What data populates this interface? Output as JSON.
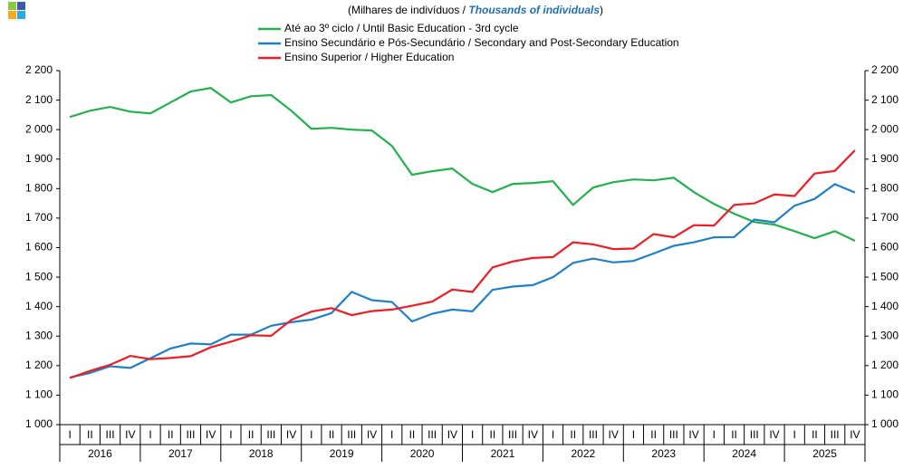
{
  "chart_data": {
    "type": "line",
    "subtitle": [
      "(Milhares de indivíduos / ",
      "Thousands of individuals",
      ")"
    ],
    "categories": [
      "I",
      "II",
      "III",
      "IV",
      "I",
      "II",
      "III",
      "IV",
      "I",
      "II",
      "III",
      "IV",
      "I",
      "II",
      "III",
      "IV",
      "I",
      "II",
      "III",
      "IV",
      "I",
      "II",
      "III",
      "IV",
      "I",
      "II",
      "III",
      "IV",
      "I",
      "II",
      "III",
      "IV",
      "I",
      "II",
      "III",
      "IV",
      "I",
      "II",
      "III",
      "IV"
    ],
    "years": [
      "2016",
      "2017",
      "2018",
      "2019",
      "2020",
      "2021",
      "2022",
      "2023",
      "2024",
      "2025"
    ],
    "series": [
      {
        "name": "Até ao 3º ciclo / Until Basic Education - 3rd cycle",
        "color": "#22b14c",
        "values": [
          2043,
          2064,
          2077,
          2061,
          2055,
          2092,
          2129,
          2141,
          2092,
          2113,
          2117,
          2064,
          2003,
          2006,
          2000,
          1997,
          1945,
          1847,
          1859,
          1868,
          1816,
          1788,
          1816,
          1819,
          1825,
          1745,
          1804,
          1822,
          1831,
          1828,
          1837,
          1788,
          1748,
          1715,
          1687,
          1678,
          1656,
          1632,
          1656,
          1623
        ]
      },
      {
        "name": "Ensino Secundário e Pós-Secundário / Secondary and Post-Secondary Education",
        "color": "#1f7fc8",
        "values": [
          1160,
          1175,
          1198,
          1192,
          1225,
          1258,
          1275,
          1272,
          1305,
          1305,
          1335,
          1347,
          1356,
          1378,
          1450,
          1422,
          1416,
          1350,
          1376,
          1390,
          1384,
          1457,
          1468,
          1473,
          1500,
          1548,
          1563,
          1550,
          1555,
          1580,
          1606,
          1618,
          1635,
          1636,
          1695,
          1686,
          1742,
          1765,
          1815,
          1787
        ]
      },
      {
        "name": "Ensino Superior / Higher Education",
        "color": "#ee1c25",
        "values": [
          1158,
          1182,
          1203,
          1233,
          1222,
          1226,
          1232,
          1262,
          1281,
          1303,
          1301,
          1355,
          1383,
          1395,
          1371,
          1385,
          1390,
          1403,
          1417,
          1458,
          1450,
          1533,
          1553,
          1565,
          1568,
          1618,
          1611,
          1595,
          1597,
          1646,
          1635,
          1676,
          1675,
          1745,
          1750,
          1780,
          1775,
          1851,
          1860,
          1930
        ]
      }
    ],
    "ylim": [
      1000,
      2200
    ],
    "yticks": [
      {
        "value": 1000,
        "label": "1 000"
      },
      {
        "value": 1100,
        "label": "1 100"
      },
      {
        "value": 1200,
        "label": "1 200"
      },
      {
        "value": 1300,
        "label": "1 300"
      },
      {
        "value": 1400,
        "label": "1 400"
      },
      {
        "value": 1500,
        "label": "1 500"
      },
      {
        "value": 1600,
        "label": "1 600"
      },
      {
        "value": 1700,
        "label": "1 700"
      },
      {
        "value": 1800,
        "label": "1 800"
      },
      {
        "value": 1900,
        "label": "1 900"
      },
      {
        "value": 2000,
        "label": "2 000"
      },
      {
        "value": 2100,
        "label": "2 100"
      },
      {
        "value": 2200,
        "label": "2 200"
      }
    ]
  }
}
